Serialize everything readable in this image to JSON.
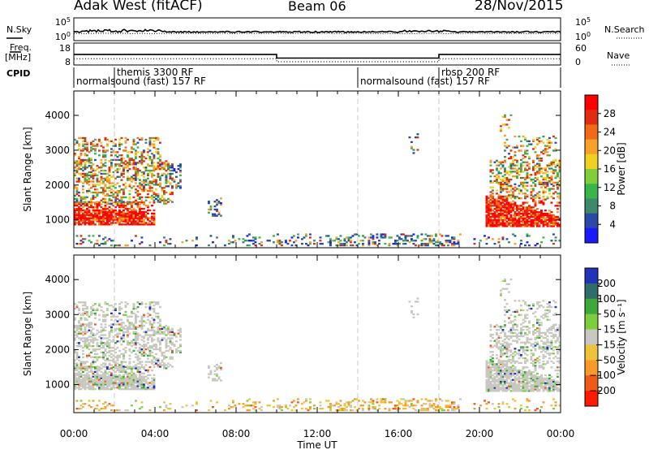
{
  "header": {
    "station": "Adak West (fitACF)",
    "beam": "Beam 06",
    "date": "28/Nov/2015"
  },
  "side_labels": {
    "nsky": "N.Sky",
    "freq_line1": "Freq.",
    "freq_line2": "[MHz]",
    "cpid": "CPID",
    "nsearch": "N.Search",
    "nave": "Nave"
  },
  "cpid_segments": [
    {
      "label": "normalsound (fast) 157 RF",
      "start_hour": 0.0
    },
    {
      "label": "themis 3300 RF",
      "start_hour": 2.0
    },
    {
      "label": "normalsound (fast) 157 RF",
      "start_hour": 14.0
    },
    {
      "label": "rbsp 200 RF",
      "start_hour": 18.0
    }
  ],
  "chart_data": [
    {
      "type": "line",
      "panel": "noise",
      "y_left_ticks": [
        "10^5",
        "10^0"
      ],
      "y_right_ticks": [
        "10^5",
        "10^0"
      ],
      "x_range": [
        0,
        24
      ]
    },
    {
      "type": "line",
      "panel": "frequency",
      "y_left_ticks": [
        "18",
        "8"
      ],
      "y_right_ticks": [
        "60",
        "0"
      ],
      "series": [
        {
          "name": "Freq.",
          "x": [
            0,
            10,
            10,
            18,
            18,
            24
          ],
          "y": [
            12.2,
            12.2,
            10.1,
            10.1,
            12.2,
            12.2
          ]
        },
        {
          "name": "Nave",
          "x": [
            0,
            10,
            10,
            18,
            18,
            24
          ],
          "y": [
            17,
            17,
            9,
            9,
            17,
            17
          ]
        }
      ]
    },
    {
      "type": "heatmap",
      "panel": "power",
      "ylabel": "Slant Range [km]",
      "yticks": [
        1000,
        2000,
        3000,
        4000
      ],
      "ylim": [
        200,
        4700
      ],
      "colorbar_label": "Power [dB]",
      "colorbar_ticks": [
        4,
        8,
        12,
        16,
        20,
        24,
        28
      ],
      "colorbar_colors": [
        "#1a1aff",
        "#2b4aa8",
        "#3c8a6a",
        "#39b64a",
        "#7fcf3a",
        "#f0d020",
        "#f7a12a",
        "#f06a1a",
        "#e02d12",
        "#ff0000"
      ],
      "x_range": [
        0,
        24
      ],
      "dashed_hours": [
        2,
        14,
        18
      ]
    },
    {
      "type": "heatmap",
      "panel": "velocity",
      "ylabel": "Slant Range [km]",
      "yticks": [
        1000,
        2000,
        3000,
        4000
      ],
      "ylim": [
        200,
        4700
      ],
      "colorbar_label": "Velocity [m s⁻¹]",
      "colorbar_ticks": [
        200,
        100,
        50,
        15,
        -15,
        -50,
        -100,
        -200
      ],
      "colorbar_colors": [
        "#2233bb",
        "#2e6e6a",
        "#3fa83a",
        "#7ccf3c",
        "#c8c8c0",
        "#f0c23a",
        "#f79a2a",
        "#f05a18",
        "#ff1a00"
      ],
      "x_range": [
        0,
        24
      ],
      "dashed_hours": [
        2,
        14,
        18
      ]
    }
  ],
  "x_axis": {
    "ticks": [
      "00:00",
      "04:00",
      "08:00",
      "12:00",
      "16:00",
      "20:00",
      "00:00"
    ],
    "label": "Time UT"
  }
}
